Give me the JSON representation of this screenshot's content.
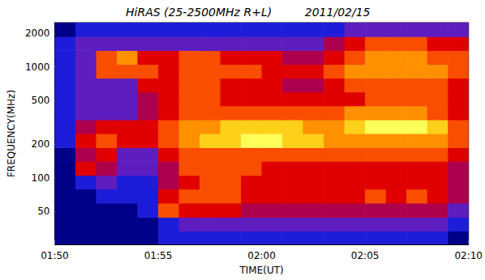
{
  "chart_data": {
    "type": "heatmap",
    "title": "HiRAS (25-2500MHz R+L)",
    "subtitle": "2011/02/15",
    "x_label": "TIME(UT)",
    "y_label": "FREQUENCY(MHz)",
    "log": "y",
    "grid": false,
    "xlim": [
      110,
      130
    ],
    "xticks": [
      {
        "value": 110,
        "label": "01:50"
      },
      {
        "value": 115,
        "label": "01:55"
      },
      {
        "value": 120,
        "label": "02:00"
      },
      {
        "value": 125,
        "label": "02:05"
      },
      {
        "value": 130,
        "label": "02:10"
      }
    ],
    "ylim": [
      25,
      2500
    ],
    "yticks": [
      50,
      100,
      200,
      500,
      1000,
      2000
    ],
    "x_edges": [
      110,
      111,
      112,
      113,
      114,
      115,
      116,
      117,
      118,
      119,
      120,
      121,
      122,
      123,
      124,
      125,
      126,
      127,
      128,
      129,
      130
    ],
    "y_edges": [
      25,
      33,
      44,
      59,
      79,
      105,
      141,
      187,
      250,
      333,
      445,
      593,
      790,
      1054,
      1405,
      1873,
      2500
    ],
    "zlim": [
      0,
      10
    ],
    "colors": [
      "#00002a",
      "#0000a0",
      "#3030ff",
      "#a00060",
      "#e00000",
      "#ff6000",
      "#ffb000",
      "#ffff40",
      "#ffffc0"
    ],
    "cells": [
      [
        1,
        1,
        1,
        1,
        1,
        2,
        2,
        2,
        2,
        2,
        2,
        2,
        2,
        2,
        2,
        2,
        2,
        2,
        2,
        1
      ],
      [
        1,
        1,
        1,
        1,
        1,
        2,
        3,
        3,
        3,
        3,
        3,
        3,
        3,
        3,
        3,
        3,
        3,
        3,
        3,
        2
      ],
      [
        1,
        1,
        1,
        1,
        2,
        6,
        5,
        5,
        5,
        4,
        4,
        4,
        4,
        4,
        4,
        4,
        4,
        4,
        4,
        3
      ],
      [
        1,
        1,
        2,
        2,
        2,
        5,
        6,
        6,
        6,
        5,
        5,
        5,
        5,
        5,
        5,
        6,
        5,
        6,
        5,
        4
      ],
      [
        1,
        2,
        3,
        2,
        2,
        4,
        5,
        6,
        6,
        5,
        5,
        5,
        5,
        5,
        5,
        5,
        5,
        5,
        5,
        4
      ],
      [
        1,
        5,
        4,
        3,
        3,
        4,
        6,
        6,
        6,
        6,
        5,
        5,
        5,
        5,
        5,
        5,
        5,
        5,
        5,
        4
      ],
      [
        1,
        4,
        5,
        3,
        3,
        5,
        6,
        6,
        6,
        6,
        6,
        6,
        6,
        6,
        6,
        6,
        6,
        6,
        6,
        5
      ],
      [
        2,
        5,
        6,
        5,
        5,
        6,
        7,
        8,
        8,
        9,
        9,
        8,
        8,
        7,
        7,
        7,
        7,
        7,
        7,
        6
      ],
      [
        2,
        4,
        5,
        5,
        5,
        6,
        7,
        7,
        8,
        8,
        8,
        8,
        7,
        7,
        8,
        9,
        9,
        9,
        8,
        6
      ],
      [
        2,
        3,
        3,
        3,
        4,
        5,
        6,
        6,
        6,
        6,
        6,
        6,
        6,
        6,
        7,
        7,
        7,
        7,
        6,
        5
      ],
      [
        2,
        3,
        3,
        3,
        4,
        5,
        6,
        6,
        5,
        5,
        5,
        5,
        5,
        5,
        5,
        6,
        6,
        6,
        6,
        5
      ],
      [
        2,
        3,
        3,
        3,
        5,
        5,
        6,
        6,
        5,
        5,
        5,
        4,
        4,
        5,
        6,
        6,
        6,
        6,
        6,
        5
      ],
      [
        2,
        3,
        6,
        6,
        6,
        5,
        6,
        6,
        6,
        6,
        5,
        5,
        5,
        6,
        7,
        7,
        7,
        7,
        7,
        6
      ],
      [
        2,
        3,
        6,
        7,
        5,
        5,
        6,
        6,
        5,
        5,
        5,
        4,
        4,
        5,
        6,
        7,
        7,
        7,
        6,
        6
      ],
      [
        2,
        3,
        3,
        3,
        3,
        3,
        3,
        3,
        3,
        3,
        3,
        3,
        3,
        4,
        5,
        6,
        6,
        6,
        5,
        5
      ],
      [
        1,
        2,
        2,
        2,
        2,
        2,
        2,
        2,
        2,
        2,
        2,
        2,
        2,
        2,
        3,
        3,
        3,
        3,
        3,
        3
      ]
    ]
  }
}
